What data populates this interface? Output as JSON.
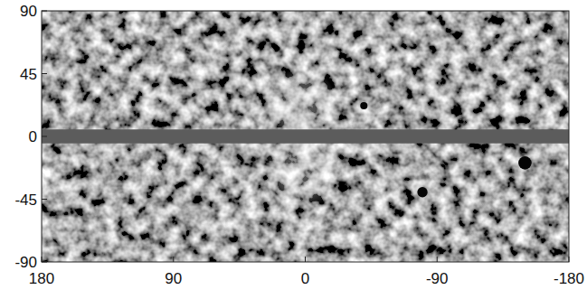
{
  "chart_data": {
    "type": "image",
    "xlim": [
      180,
      -180
    ],
    "ylim": [
      -90,
      90
    ],
    "xticks": [
      180,
      90,
      0,
      -90,
      -180
    ],
    "yticks": [
      90,
      45,
      0,
      -45,
      -90
    ],
    "masked_band": [
      -5,
      5
    ],
    "bright_regions": {
      "x": [
        2,
        2
      ],
      "y": [
        22,
        -22
      ],
      "size": [
        24,
        26
      ]
    },
    "dark_spots": {
      "x": [
        -40,
        -150,
        -80
      ],
      "y": [
        22,
        -19,
        -40
      ],
      "size": [
        2.5,
        4.5,
        3.5
      ]
    }
  }
}
